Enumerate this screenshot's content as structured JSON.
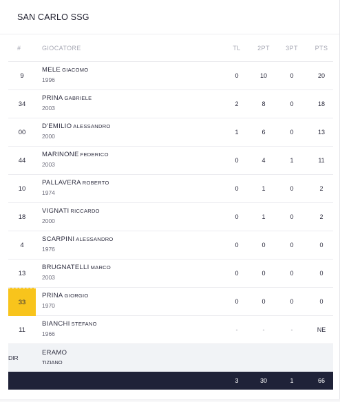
{
  "team": {
    "name": "SAN CARLO SSG"
  },
  "columns": {
    "number": "#",
    "player": "GIOCATORE",
    "tl": "TL",
    "pt2": "2PT",
    "pt3": "3PT",
    "pts": "PTS"
  },
  "players": [
    {
      "number": "9",
      "last": "MELE",
      "first": "GIACOMO",
      "year": "1996",
      "tl": "0",
      "pt2": "10",
      "pt3": "0",
      "pts": "20",
      "highlight": false
    },
    {
      "number": "34",
      "last": "PRINA",
      "first": "GABRIELE",
      "year": "2003",
      "tl": "2",
      "pt2": "8",
      "pt3": "0",
      "pts": "18",
      "highlight": false
    },
    {
      "number": "00",
      "last": "D'EMILIO",
      "first": "ALESSANDRO",
      "year": "2000",
      "tl": "1",
      "pt2": "6",
      "pt3": "0",
      "pts": "13",
      "highlight": false
    },
    {
      "number": "44",
      "last": "MARINONE",
      "first": "FEDERICO",
      "year": "2003",
      "tl": "0",
      "pt2": "4",
      "pt3": "1",
      "pts": "11",
      "highlight": false
    },
    {
      "number": "10",
      "last": "PALLAVERA",
      "first": "ROBERTO",
      "year": "1974",
      "tl": "0",
      "pt2": "1",
      "pt3": "0",
      "pts": "2",
      "highlight": false
    },
    {
      "number": "18",
      "last": "VIGNATI",
      "first": "RICCARDO",
      "year": "2000",
      "tl": "0",
      "pt2": "1",
      "pt3": "0",
      "pts": "2",
      "highlight": false
    },
    {
      "number": "4",
      "last": "SCARPINI",
      "first": "ALESSANDRO",
      "year": "1976",
      "tl": "0",
      "pt2": "0",
      "pt3": "0",
      "pts": "0",
      "highlight": false
    },
    {
      "number": "13",
      "last": "BRUGNATELLI",
      "first": "MARCO",
      "year": "2003",
      "tl": "0",
      "pt2": "0",
      "pt3": "0",
      "pts": "0",
      "highlight": false
    },
    {
      "number": "33",
      "last": "PRINA",
      "first": "GIORGIO",
      "year": "1970",
      "tl": "0",
      "pt2": "0",
      "pt3": "0",
      "pts": "0",
      "highlight": true,
      "highlight_color": "#f8c41c"
    },
    {
      "number": "11",
      "last": "BIANCHI",
      "first": "STEFANO",
      "year": "1966",
      "tl": "-",
      "pt2": "-",
      "pt3": "-",
      "pts": "NE",
      "highlight": false
    }
  ],
  "coach": {
    "role": "DIR",
    "last": "ERAMO",
    "first": "TIZIANO"
  },
  "totals": {
    "tl": "3",
    "pt2": "30",
    "pt3": "1",
    "pts": "66"
  },
  "colors": {
    "highlight": "#f8c41c",
    "totals_bg": "#1f2238",
    "coach_bg": "#f1f3f6"
  }
}
